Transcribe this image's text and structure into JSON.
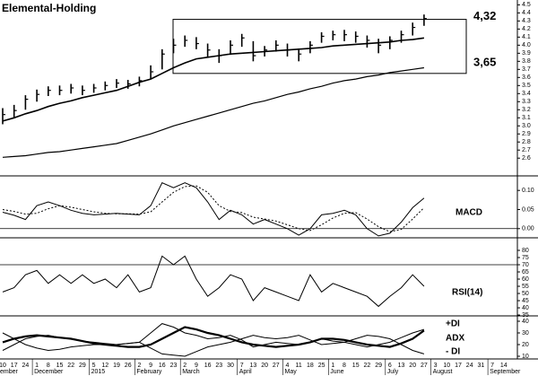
{
  "chart_data": [
    {
      "type": "hlc",
      "title": "Elemental-Holding",
      "high": [
        3.22,
        3.26,
        3.38,
        3.45,
        3.49,
        3.5,
        3.52,
        3.5,
        3.52,
        3.55,
        3.58,
        3.57,
        3.61,
        3.75,
        3.95,
        4.08,
        4.12,
        4.1,
        4.02,
        3.95,
        4.06,
        4.14,
        4.05,
        3.99,
        4.06,
        4.02,
        3.96,
        4.05,
        4.16,
        4.18,
        4.19,
        4.17,
        4.12,
        4.08,
        4.11,
        4.18,
        4.28,
        4.38,
        null,
        null,
        null,
        null,
        null,
        null,
        null
      ],
      "low": [
        3.02,
        3.1,
        3.2,
        3.3,
        3.37,
        3.38,
        3.4,
        3.38,
        3.41,
        3.44,
        3.47,
        3.46,
        3.49,
        3.58,
        3.7,
        3.9,
        3.98,
        3.95,
        3.85,
        3.78,
        3.88,
        3.98,
        3.8,
        3.86,
        3.92,
        3.86,
        3.8,
        3.9,
        4.03,
        4.06,
        4.05,
        4.03,
        3.97,
        3.9,
        3.95,
        4.03,
        4.12,
        4.24,
        null,
        null,
        null,
        null,
        null,
        null,
        null
      ],
      "close": [
        3.14,
        3.19,
        3.33,
        3.39,
        3.44,
        3.44,
        3.47,
        3.44,
        3.47,
        3.5,
        3.53,
        3.52,
        3.56,
        3.67,
        3.89,
        4.0,
        4.06,
        4.02,
        3.94,
        3.87,
        4.0,
        4.09,
        3.87,
        3.94,
        4.0,
        3.94,
        3.89,
        4.0,
        4.11,
        4.13,
        4.13,
        4.11,
        4.06,
        4.0,
        4.06,
        4.13,
        4.22,
        4.33,
        null,
        null,
        null,
        null,
        null,
        null,
        null
      ],
      "series": [
        {
          "color": "#000000",
          "values": [
            3.06,
            3.1,
            3.15,
            3.19,
            3.24,
            3.28,
            3.31,
            3.35,
            3.38,
            3.41,
            3.44,
            3.49,
            3.54,
            3.58,
            3.65,
            3.72,
            3.78,
            3.83,
            3.85,
            3.87,
            3.89,
            3.9,
            3.91,
            3.92,
            3.93,
            3.94,
            3.95,
            3.96,
            3.97,
            3.99,
            4.0,
            4.01,
            4.02,
            4.03,
            4.04,
            4.06,
            4.07,
            4.09,
            null,
            null,
            null,
            null,
            null,
            null,
            null
          ]
        },
        {
          "color": "#000000",
          "values": [
            2.61,
            2.62,
            2.63,
            2.65,
            2.67,
            2.68,
            2.7,
            2.72,
            2.74,
            2.76,
            2.78,
            2.82,
            2.86,
            2.9,
            2.95,
            3.0,
            3.04,
            3.08,
            3.12,
            3.16,
            3.2,
            3.24,
            3.28,
            3.31,
            3.35,
            3.39,
            3.42,
            3.46,
            3.49,
            3.53,
            3.56,
            3.58,
            3.61,
            3.63,
            3.66,
            3.68,
            3.7,
            3.72,
            null,
            null,
            null,
            null,
            null,
            null,
            null
          ]
        }
      ],
      "box": [
        {
          "value": 4.32,
          "label": "4,32"
        },
        {
          "value": 3.65,
          "label": "3,65"
        }
      ],
      "ylim": [
        2.38,
        4.56
      ],
      "yticks": [
        4.5,
        4.4,
        4.3,
        4.2,
        4.1,
        {
          "value": 4,
          "label": "4.0"
        },
        3.9,
        3.8,
        3.7,
        3.6,
        3.5,
        3.4,
        3.3,
        3.2,
        3.1,
        {
          "value": 3,
          "label": "3.0"
        },
        2.9,
        2.8,
        2.7,
        2.6
      ]
    },
    {
      "type": "line",
      "series": [
        {
          "name": "MACD",
          "color": "#000000",
          "values": [
            0.043,
            0.035,
            0.024,
            0.06,
            0.07,
            0.06,
            0.048,
            0.04,
            0.036,
            0.038,
            0.04,
            0.038,
            0.036,
            0.06,
            0.12,
            0.107,
            0.12,
            0.107,
            0.07,
            0.024,
            0.048,
            0.036,
            0.012,
            0.024,
            0.012,
            0.0,
            -0.017,
            0.0,
            0.036,
            0.04,
            0.048,
            0.036,
            0.0,
            -0.019,
            -0.012,
            0.017,
            0.055,
            0.08,
            null,
            null,
            null,
            null,
            null,
            null,
            null
          ]
        },
        {
          "color": "#000000",
          "dashed": true,
          "values": [
            0.05,
            0.045,
            0.038,
            0.04,
            0.052,
            0.06,
            0.056,
            0.05,
            0.044,
            0.04,
            0.039,
            0.039,
            0.038,
            0.044,
            0.07,
            0.095,
            0.11,
            0.112,
            0.095,
            0.06,
            0.045,
            0.042,
            0.03,
            0.025,
            0.02,
            0.01,
            0.0,
            -0.005,
            0.01,
            0.028,
            0.04,
            0.042,
            0.025,
            0.005,
            -0.008,
            -0.002,
            0.025,
            0.055,
            null,
            null,
            null,
            null,
            null,
            null,
            null
          ]
        }
      ],
      "hlines": [
        0
      ],
      "ylim": [
        -0.024,
        0.138
      ],
      "yticks": [
        {
          "value": 0.1,
          "label": "0.10"
        },
        {
          "value": 0.05,
          "label": "0.05"
        },
        {
          "value": 0,
          "label": "0.00"
        }
      ]
    },
    {
      "type": "line",
      "series": [
        {
          "name": "RSI(14)",
          "color": "#000000",
          "values": [
            51,
            54,
            63,
            66,
            57,
            63,
            57,
            63,
            57,
            60,
            54,
            63,
            51,
            54,
            76,
            70,
            76,
            60,
            48,
            54,
            63,
            60,
            45,
            54,
            51,
            48,
            45,
            63,
            51,
            57,
            54,
            51,
            48,
            41,
            48,
            54,
            63,
            55,
            null,
            null,
            null,
            null,
            null,
            null,
            null
          ]
        }
      ],
      "hlines": [
        70
      ],
      "ylim": [
        34.4,
        88.75
      ],
      "yticks": [
        80,
        75,
        70,
        65,
        60,
        55,
        50,
        45,
        40,
        35
      ]
    },
    {
      "type": "line",
      "series": [
        {
          "name": "+DI",
          "color": "#000000",
          "values": [
            15,
            20,
            25,
            27,
            28,
            26,
            25,
            23,
            22,
            21,
            20,
            21,
            22,
            30,
            38,
            35,
            30,
            28,
            25,
            26,
            28,
            24,
            18,
            20,
            22,
            21,
            20,
            22,
            25,
            23,
            22,
            20,
            18,
            20,
            22,
            26,
            30,
            33,
            null,
            null,
            null,
            null,
            null,
            null,
            null
          ]
        },
        {
          "name": "ADX",
          "color": "#000000",
          "bold": true,
          "values": [
            22,
            25,
            27,
            28,
            27,
            26,
            25,
            23,
            21,
            20,
            19,
            18,
            18,
            20,
            25,
            30,
            35,
            33,
            30,
            28,
            25,
            22,
            20,
            19,
            18,
            19,
            20,
            22,
            25,
            25,
            24,
            22,
            20,
            19,
            18,
            21,
            25,
            32,
            null,
            null,
            null,
            null,
            null,
            null,
            null
          ]
        },
        {
          "name": "- DI",
          "color": "#000000",
          "values": [
            30,
            25,
            20,
            17,
            15,
            16,
            18,
            19,
            20,
            20,
            20,
            21,
            22,
            17,
            12,
            11,
            10,
            14,
            18,
            20,
            22,
            25,
            28,
            26,
            25,
            26,
            28,
            24,
            20,
            21,
            22,
            25,
            28,
            27,
            25,
            20,
            15,
            12,
            null,
            null,
            null,
            null,
            null,
            null,
            null
          ]
        }
      ],
      "ylim": [
        7.7,
        44.6
      ],
      "yticks": [
        40,
        30,
        20,
        10
      ],
      "categories": [
        "10",
        "17",
        "24",
        "1",
        "8",
        "15",
        "22",
        "29",
        "5",
        "12",
        "19",
        "26",
        "2",
        "9",
        "16",
        "23",
        "2",
        "9",
        "16",
        "23",
        "30",
        "7",
        "13",
        "20",
        "27",
        "4",
        "11",
        "18",
        "25",
        "1",
        "8",
        "15",
        "22",
        "29",
        "6",
        "13",
        "20",
        "27",
        "3",
        "10",
        "17",
        "24",
        "31",
        "7",
        "14"
      ],
      "months": [
        "ember",
        null,
        null,
        "December",
        null,
        null,
        null,
        null,
        "2015",
        null,
        null,
        null,
        "February",
        null,
        null,
        null,
        "March",
        null,
        null,
        null,
        null,
        "April",
        null,
        null,
        null,
        "May",
        null,
        null,
        null,
        "June",
        null,
        null,
        null,
        null,
        "July",
        null,
        null,
        null,
        "August",
        null,
        null,
        null,
        null,
        "September",
        null
      ]
    }
  ]
}
